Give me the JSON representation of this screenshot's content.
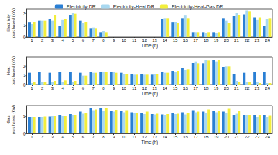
{
  "chart_data": [
    {
      "type": "bar",
      "y_label": "Electricity\npurchased (kW)",
      "x_label": "Time (h)",
      "categories": [
        "1",
        "2",
        "3",
        "4",
        "5",
        "6",
        "7",
        "8",
        "9",
        "10",
        "11",
        "12",
        "13",
        "14",
        "15",
        "16",
        "17",
        "18",
        "19",
        "20",
        "21",
        "22",
        "23",
        "24"
      ],
      "ylim": [
        0,
        2.4
      ],
      "yticks": [
        0,
        1,
        2
      ],
      "grid": false,
      "legend": "top",
      "series": [
        {
          "name": "Electricity DR",
          "color": "#2a7fd4",
          "values": [
            1.25,
            1.4,
            1.5,
            0.9,
            1.9,
            1.4,
            0.7,
            0.4,
            0,
            0,
            0,
            0,
            0,
            1.55,
            1.25,
            1.6,
            0.4,
            0.4,
            0.4,
            1.6,
            1.8,
            1.95,
            1.65,
            0.9
          ]
        },
        {
          "name": "Electricity-Heat DR",
          "color": "#a8d8f0",
          "values": [
            1.1,
            1.4,
            1.4,
            1.45,
            2.05,
            1.2,
            0.8,
            0.5,
            0,
            0,
            0,
            0,
            0,
            1.6,
            1.3,
            1.85,
            0.4,
            0.35,
            0.35,
            1.4,
            2.1,
            2.25,
            1.45,
            1.5
          ]
        },
        {
          "name": "Electricity-Heat-Gas DR",
          "color": "#f2ee3c",
          "values": [
            1.3,
            1.4,
            1.9,
            1.5,
            2.0,
            1.3,
            0.7,
            0.4,
            0,
            0,
            0,
            0,
            0,
            1.6,
            1.2,
            1.6,
            0.4,
            0.4,
            0.4,
            1.2,
            1.9,
            2.2,
            1.65,
            1.6
          ]
        }
      ]
    },
    {
      "type": "bar",
      "y_label": "Heat\npurchased (kW)",
      "x_label": "Time (h)",
      "categories": [
        "1",
        "2",
        "3",
        "4",
        "5",
        "6",
        "7",
        "8",
        "9",
        "10",
        "11",
        "12",
        "13",
        "14",
        "15",
        "16",
        "17",
        "18",
        "19",
        "20",
        "21",
        "22",
        "23",
        "24"
      ],
      "ylim": [
        0,
        3
      ],
      "yticks": [
        0,
        1,
        2
      ],
      "grid": false,
      "series": [
        {
          "name": "Electricity DR",
          "color": "#2a7fd4",
          "values": [
            1.3,
            1.4,
            1.3,
            1.4,
            1.4,
            1.3,
            1.4,
            1.4,
            1.4,
            1.3,
            1.2,
            1.2,
            1.1,
            1.4,
            1.5,
            1.8,
            2.4,
            2.3,
            2.7,
            1.9,
            1.2,
            1.3,
            1.4,
            1.4
          ]
        },
        {
          "name": "Electricity-Heat DR",
          "color": "#a8d8f0",
          "values": [
            0.2,
            0.3,
            0.3,
            0.3,
            0.3,
            1.0,
            1.3,
            1.4,
            1.4,
            1.2,
            1.1,
            1.1,
            1.2,
            1.3,
            1.4,
            1.6,
            2.5,
            2.7,
            2.5,
            2.0,
            0.4,
            0.3,
            0.3,
            0.2
          ]
        },
        {
          "name": "Electricity-Heat-Gas DR",
          "color": "#f2ee3c",
          "values": [
            0.3,
            0.3,
            0.4,
            0.5,
            0.4,
            1.0,
            1.3,
            1.4,
            1.3,
            1.2,
            1.1,
            1.1,
            1.2,
            1.3,
            1.5,
            1.7,
            2.3,
            2.6,
            2.7,
            2.0,
            0.3,
            0.3,
            0.2,
            0.2
          ]
        }
      ]
    },
    {
      "type": "bar",
      "y_label": "Gas\npurchased (kW)",
      "x_label": "Time (h)",
      "categories": [
        "1",
        "2",
        "3",
        "4",
        "5",
        "6",
        "7",
        "8",
        "9",
        "10",
        "11",
        "12",
        "13",
        "14",
        "15",
        "16",
        "17",
        "18",
        "19",
        "20",
        "21",
        "22",
        "23",
        "24"
      ],
      "ylim": [
        0,
        8
      ],
      "yticks": [
        0,
        5
      ],
      "grid": false,
      "series": [
        {
          "name": "Electricity DR",
          "color": "#2a7fd4",
          "values": [
            4.6,
            4.7,
            4.9,
            5.3,
            5.6,
            6.3,
            7.2,
            7.4,
            6.6,
            6.4,
            6.1,
            5.9,
            5.6,
            5.5,
            5.9,
            6.1,
            6.7,
            6.3,
            6.4,
            6.3,
            5.2,
            5.4,
            5.3,
            5.2
          ]
        },
        {
          "name": "Electricity-Heat DR",
          "color": "#a8d8f0",
          "values": [
            4.8,
            4.8,
            5.0,
            5.0,
            5.2,
            5.7,
            6.7,
            6.6,
            6.3,
            6.1,
            5.8,
            5.6,
            5.5,
            5.3,
            5.6,
            5.5,
            6.1,
            5.9,
            6.1,
            5.8,
            5.7,
            5.2,
            4.8,
            4.8
          ]
        },
        {
          "name": "Electricity-Heat-Gas DR",
          "color": "#f2ee3c",
          "values": [
            4.7,
            4.9,
            5.0,
            5.0,
            5.3,
            6.0,
            6.9,
            7.3,
            6.8,
            6.7,
            6.0,
            6.3,
            5.7,
            5.6,
            5.7,
            6.0,
            6.3,
            6.9,
            6.5,
            7.1,
            6.4,
            5.2,
            5.2,
            5.1
          ]
        }
      ]
    }
  ]
}
